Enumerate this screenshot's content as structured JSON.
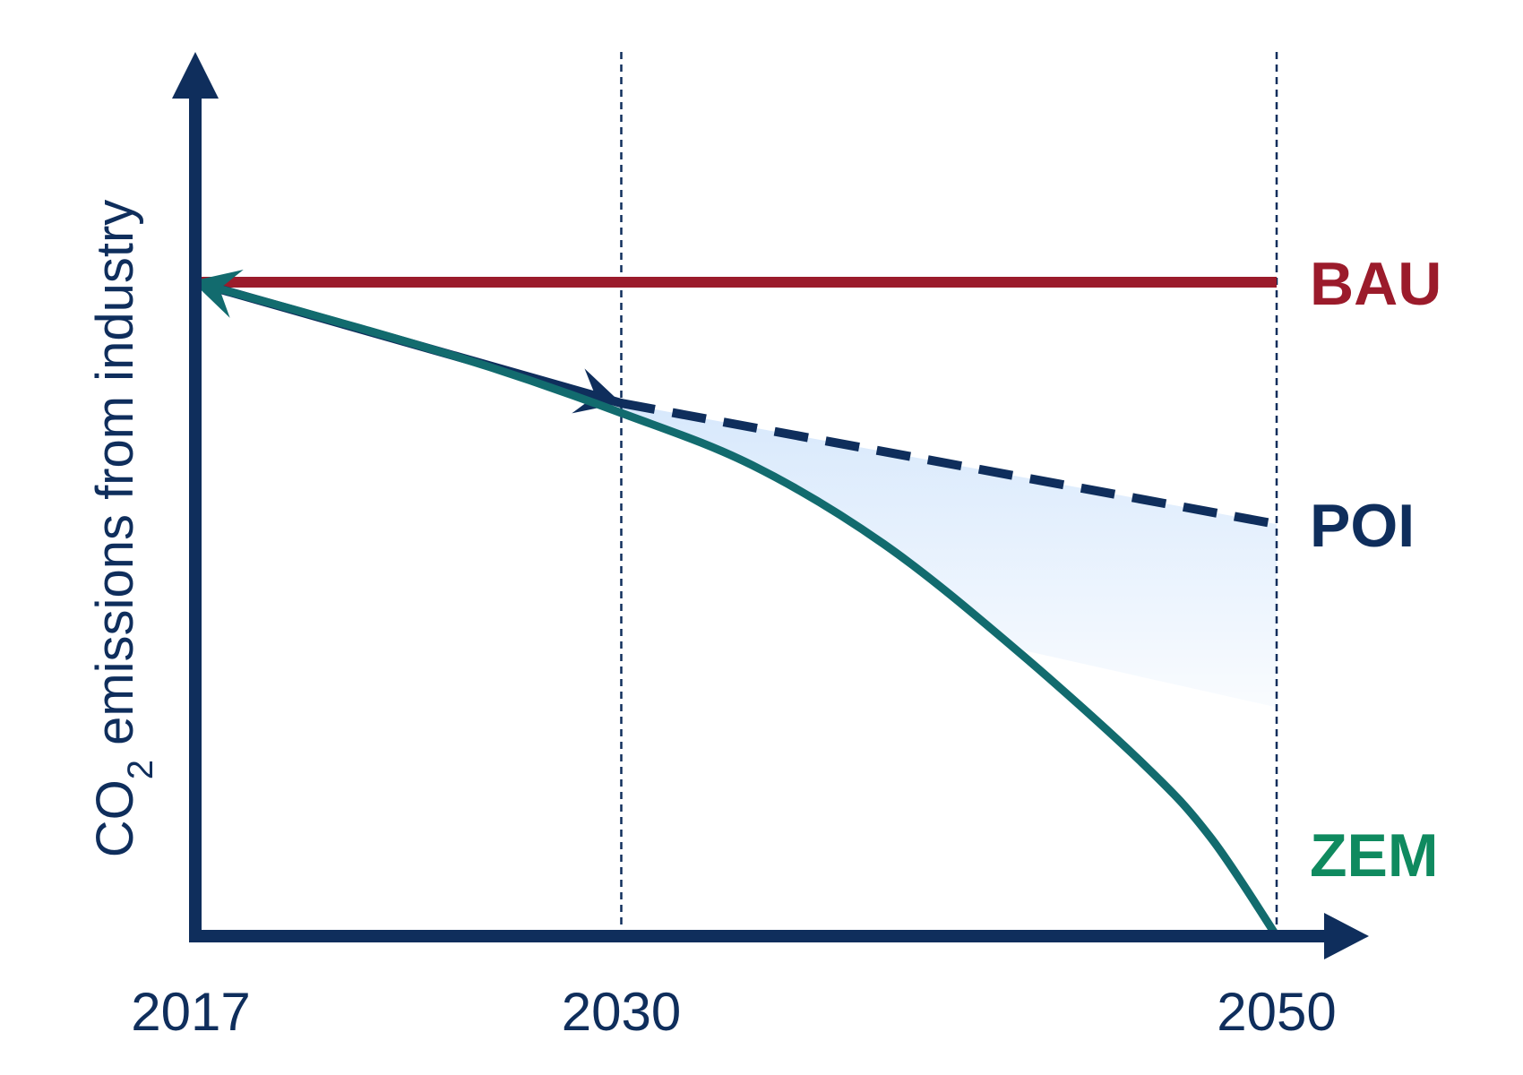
{
  "chart_data": {
    "type": "line",
    "xlabel": "",
    "ylabel": {
      "prefix": "CO",
      "subscript": "2",
      "suffix": " emissions from industry"
    },
    "x_ticks": [
      "2017",
      "2030",
      "2050"
    ],
    "xlim": [
      2017,
      2050
    ],
    "ylim": [
      0,
      1
    ],
    "grid": false,
    "reference_lines_x": [
      2030,
      2050
    ],
    "series": [
      {
        "name": "BAU",
        "color": "#9b1b2b",
        "style": "solid",
        "x": [
          2017,
          2050
        ],
        "y": [
          1.0,
          1.0
        ]
      },
      {
        "name": "POI",
        "color": "#0f2e5c",
        "style": "solid-then-dashed",
        "dashed_from_x": 2030,
        "x": [
          2017,
          2030,
          2050
        ],
        "y": [
          1.0,
          0.815,
          0.63
        ]
      },
      {
        "name": "ZEM",
        "color": "#126b6e",
        "label_color": "#0f8a5f",
        "style": "solid",
        "x": [
          2017,
          2022,
          2026,
          2030,
          2034,
          2038,
          2042,
          2046,
          2048,
          2050
        ],
        "y": [
          1.0,
          0.93,
          0.87,
          0.8,
          0.72,
          0.6,
          0.44,
          0.26,
          0.15,
          0.0
        ]
      }
    ],
    "shaded_region": {
      "between": [
        "POI",
        "ZEM"
      ],
      "x_range": [
        2030,
        2050
      ],
      "color": "#d7e8fc"
    },
    "axis_color": "#0f2e5c"
  }
}
